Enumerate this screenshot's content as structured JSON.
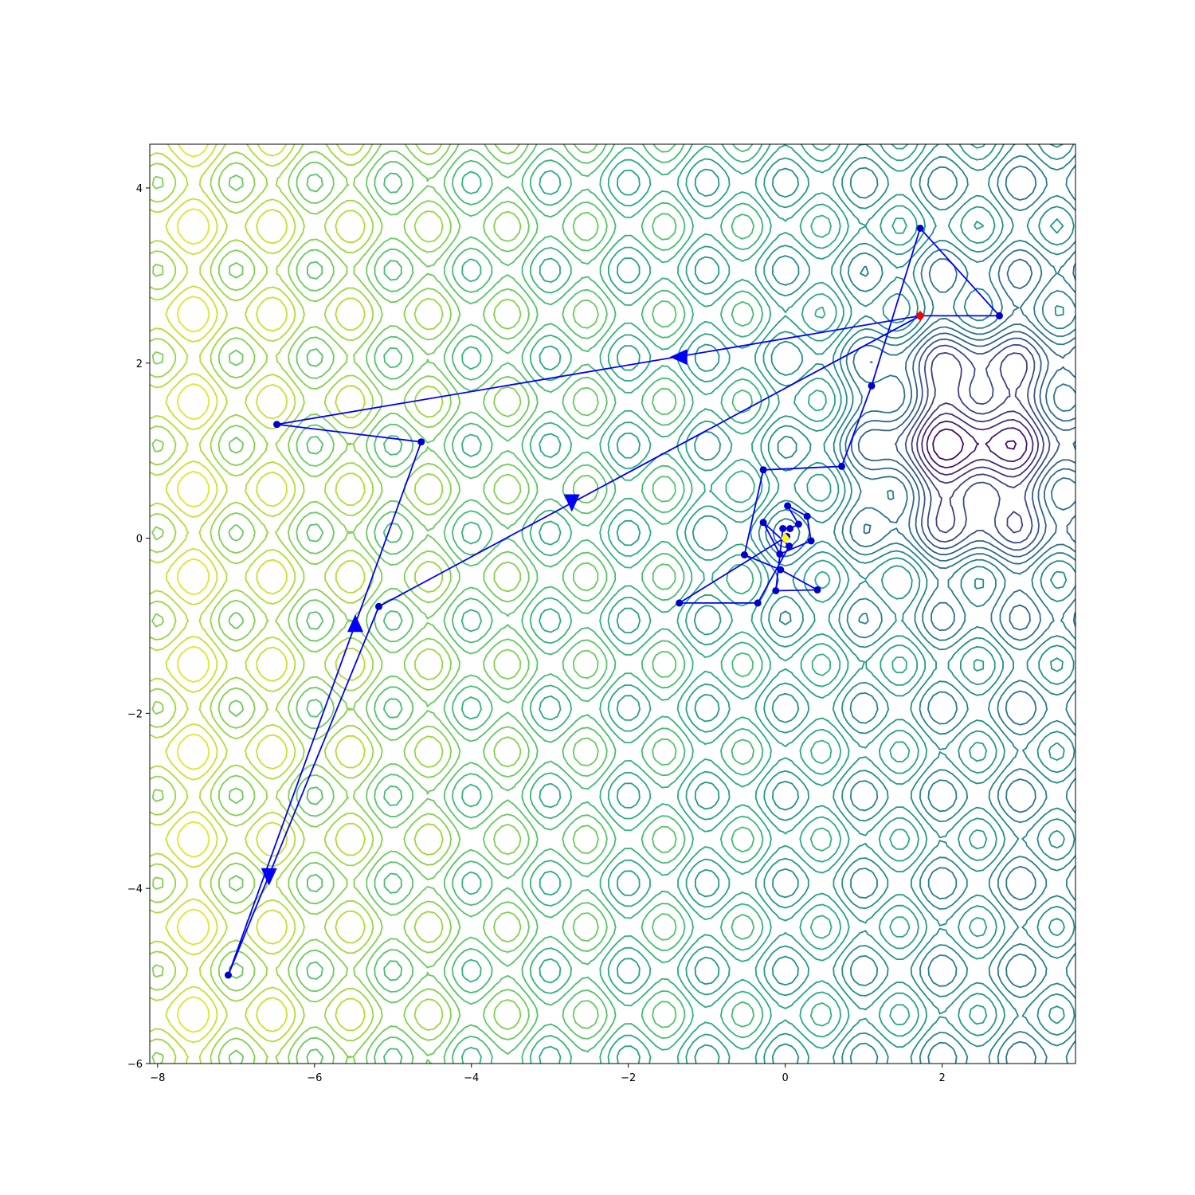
{
  "chart_data": {
    "type": "contour",
    "title": "",
    "xlabel": "",
    "ylabel": "",
    "xlim": [
      -8.1,
      3.7
    ],
    "ylim": [
      -6,
      4.5
    ],
    "grid": false,
    "legend": "none",
    "colormap": "viridis",
    "x_ticks": [
      -8,
      -6,
      -4,
      -2,
      0,
      2
    ],
    "x_tick_labels": [
      "−8",
      "−6",
      "−4",
      "−2",
      "0",
      "2"
    ],
    "y_ticks": [
      -6,
      -4,
      -2,
      0,
      2,
      4
    ],
    "y_tick_labels": [
      "−6",
      "−4",
      "−2",
      "0",
      "2",
      "4"
    ],
    "contour": {
      "levels": 25,
      "colors": [
        "#440154",
        "#472c7a",
        "#3b518b",
        "#2c718e",
        "#21908d",
        "#27ad81",
        "#5cc863",
        "#aadc32",
        "#fde725"
      ]
    },
    "paths": [
      {
        "name": "",
        "color": "#0000ff",
        "points": [
          [
            1.72,
            2.54
          ],
          [
            2.73,
            2.54
          ],
          [
            1.72,
            3.54
          ],
          [
            1.1,
            1.74
          ],
          [
            0.72,
            0.82
          ],
          [
            -0.28,
            0.78
          ],
          [
            -0.52,
            -0.19
          ],
          [
            -0.06,
            -0.36
          ],
          [
            0.41,
            -0.59
          ],
          [
            -0.12,
            -0.6
          ],
          [
            -0.03,
            0.11
          ],
          [
            0.06,
            0.11
          ],
          [
            0.17,
            0.16
          ],
          [
            0.03,
            0.37
          ],
          [
            0.28,
            0.25
          ],
          [
            0.33,
            -0.03
          ],
          [
            -0.07,
            -0.18
          ],
          [
            -0.28,
            0.18
          ],
          [
            0.05,
            -0.09
          ],
          [
            -0.35,
            -0.74
          ],
          [
            -1.35,
            -0.74
          ],
          [
            0.02,
            0.02
          ]
        ]
      },
      {
        "name": "",
        "color": "#0000ff",
        "points": [
          [
            1.72,
            2.54
          ],
          [
            -6.48,
            1.3
          ],
          [
            -4.64,
            1.1
          ],
          [
            -7.1,
            -4.99
          ],
          [
            -5.18,
            -0.78
          ],
          [
            1.72,
            2.54
          ]
        ]
      }
    ],
    "arrows": [
      {
        "x": -1.35,
        "y": 2.07,
        "direction": "left"
      },
      {
        "x": -2.72,
        "y": 0.41,
        "direction": "down"
      },
      {
        "x": -5.48,
        "y": -0.98,
        "direction": "up"
      },
      {
        "x": -6.58,
        "y": -3.86,
        "direction": "down"
      }
    ],
    "markers": [
      {
        "x": 1.72,
        "y": 2.54,
        "shape": "diamond",
        "color": "#ff0000"
      },
      {
        "x": 0.0,
        "y": 0.0,
        "shape": "diamond",
        "color": "#ffff00"
      }
    ]
  }
}
